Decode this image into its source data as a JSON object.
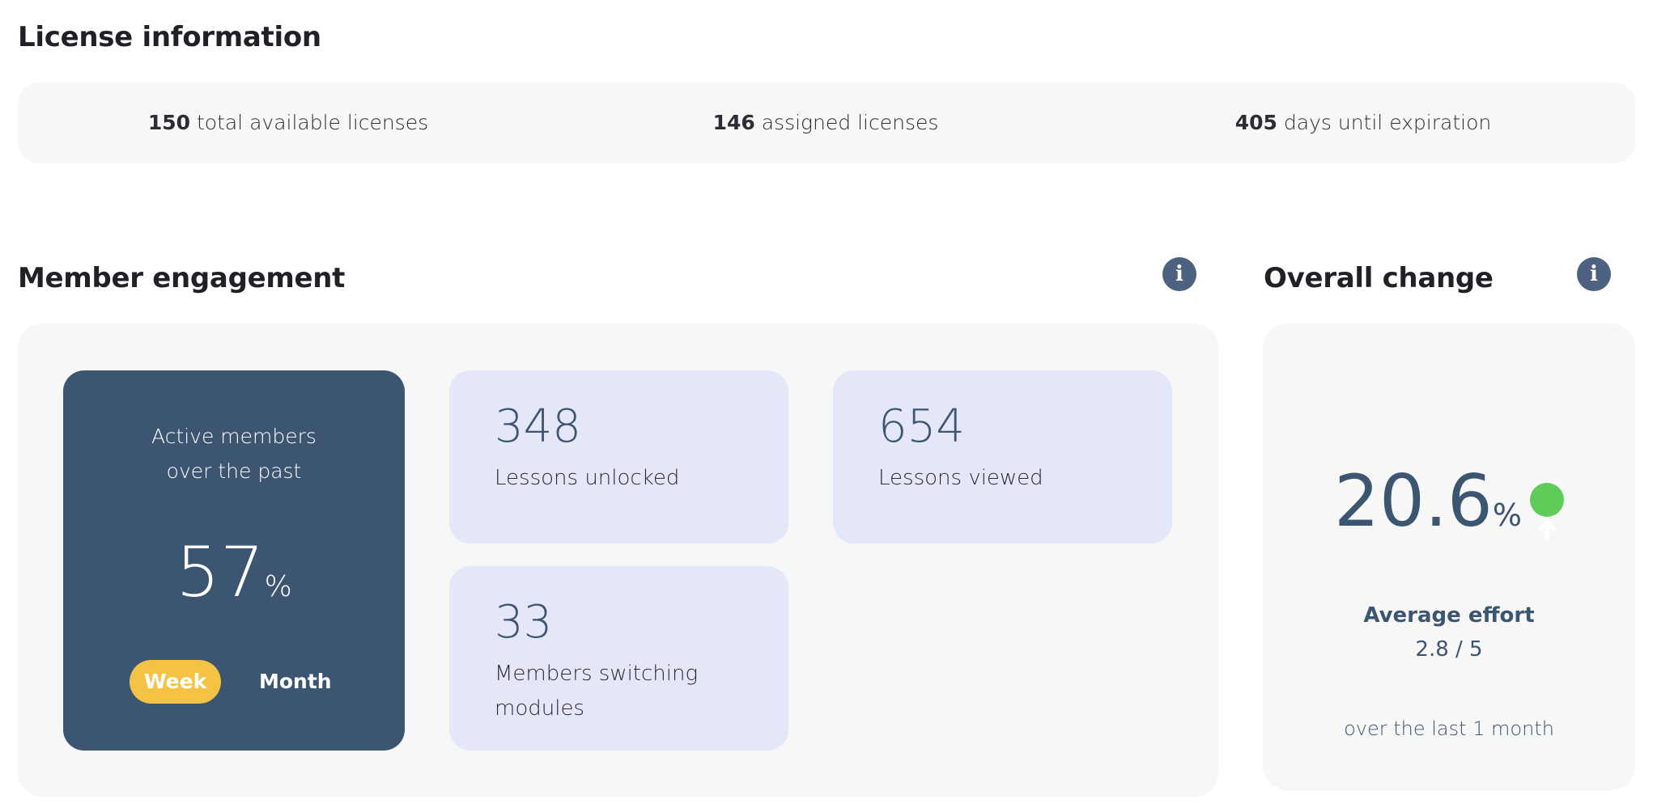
{
  "license": {
    "title": "License information",
    "items": [
      {
        "value": "150",
        "label": "total available licenses"
      },
      {
        "value": "146",
        "label": "assigned licenses"
      },
      {
        "value": "405",
        "label": "days until expiration"
      }
    ]
  },
  "engagement": {
    "title": "Member engagement",
    "info_icon": "info-icon",
    "active": {
      "label_line1": "Active members",
      "label_line2": "over the past",
      "value": "57",
      "unit": "%",
      "toggle": [
        {
          "label": "Week",
          "selected": true
        },
        {
          "label": "Month",
          "selected": false
        }
      ]
    },
    "stats": [
      {
        "value": "348",
        "label": "Lessons unlocked"
      },
      {
        "value": "654",
        "label": "Lessons viewed"
      },
      {
        "value": "33",
        "label_line1": "Members switching",
        "label_line2": "modules"
      }
    ]
  },
  "overall": {
    "title": "Overall change",
    "info_icon": "info-icon",
    "value": "20.6",
    "unit": "%",
    "trend_icon": "arrow-up-circle-icon",
    "trend_color": "#5fcc58",
    "effort_label": "Average effort",
    "effort_value": "2.8 / 5",
    "period": "over the last 1 month"
  },
  "colors": {
    "accent_dark": "#3c5571",
    "toggle_active": "#f4c244",
    "card_bg": "#e4e7f8"
  }
}
